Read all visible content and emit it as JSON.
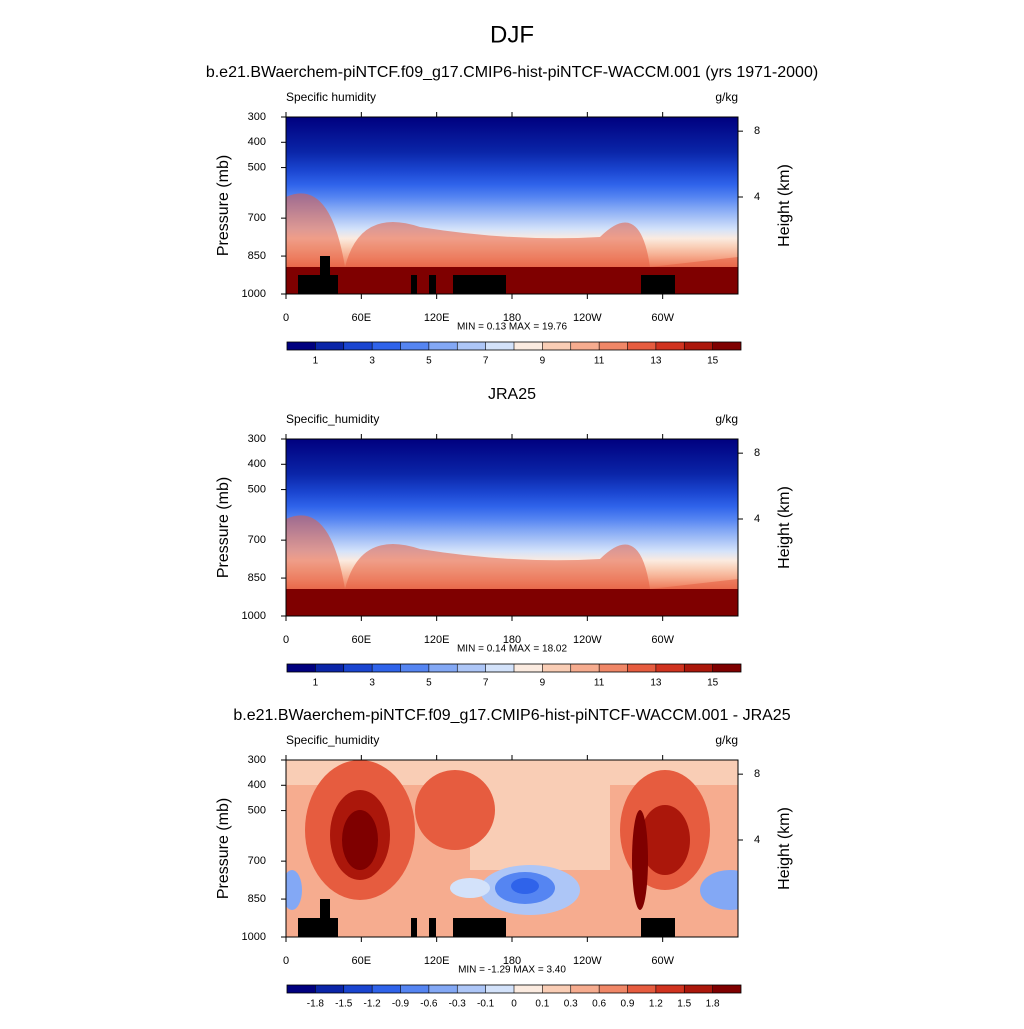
{
  "title": "DJF",
  "chart_data": [
    {
      "type": "contour",
      "title": "b.e21.BWaerchem-piNTCF.f09_g17.CMIP6-hist-piNTCF-WACCM.001 (yrs 1971-2000)",
      "left_label": "Specific humidity",
      "units": "g/kg",
      "ylabel": "Pressure (mb)",
      "y2label": "Height (km)",
      "ylim": [
        300,
        1000
      ],
      "yticks": [
        300,
        400,
        500,
        700,
        850,
        1000
      ],
      "y2ticks": [
        8,
        4
      ],
      "xlim": [
        0,
        360
      ],
      "xticks": [
        0,
        {
          "value": 60,
          "label": "60E"
        },
        {
          "value": 120,
          "label": "120E"
        },
        180,
        {
          "value": 240,
          "label": "120W"
        },
        {
          "value": 300,
          "label": "60W"
        }
      ],
      "stats": "MIN =  0.13  MAX =  19.76",
      "colorbar": {
        "levels": [
          1,
          2,
          3,
          4,
          5,
          6,
          7,
          8,
          9,
          10,
          11,
          12,
          13,
          14,
          15
        ],
        "ticks": [
          1,
          3,
          5,
          7,
          9,
          11,
          13,
          15
        ],
        "colors": [
          "#00007f",
          "#0a25a8",
          "#1a45d0",
          "#2f63ea",
          "#5585f2",
          "#83a8f5",
          "#adc6f7",
          "#d3e2fa",
          "#fbebe0",
          "#f9cdb5",
          "#f6ac8f",
          "#f08767",
          "#e65c3f",
          "#d0331f",
          "#ab170b",
          "#7f0000"
        ]
      }
    },
    {
      "type": "contour",
      "title": "JRA25",
      "left_label": "Specific_humidity",
      "units": "g/kg",
      "ylabel": "Pressure (mb)",
      "y2label": "Height (km)",
      "ylim": [
        300,
        1000
      ],
      "yticks": [
        300,
        400,
        500,
        700,
        850,
        1000
      ],
      "y2ticks": [
        8,
        4
      ],
      "xlim": [
        0,
        360
      ],
      "xticks": [
        0,
        {
          "value": 60,
          "label": "60E"
        },
        {
          "value": 120,
          "label": "120E"
        },
        180,
        {
          "value": 240,
          "label": "120W"
        },
        {
          "value": 300,
          "label": "60W"
        }
      ],
      "stats": "MIN =  0.14  MAX =  18.02",
      "colorbar": {
        "levels": [
          1,
          2,
          3,
          4,
          5,
          6,
          7,
          8,
          9,
          10,
          11,
          12,
          13,
          14,
          15
        ],
        "ticks": [
          1,
          3,
          5,
          7,
          9,
          11,
          13,
          15
        ],
        "colors": [
          "#00007f",
          "#0a25a8",
          "#1a45d0",
          "#2f63ea",
          "#5585f2",
          "#83a8f5",
          "#adc6f7",
          "#d3e2fa",
          "#fbebe0",
          "#f9cdb5",
          "#f6ac8f",
          "#f08767",
          "#e65c3f",
          "#d0331f",
          "#ab170b",
          "#7f0000"
        ]
      }
    },
    {
      "type": "contour",
      "title": "b.e21.BWaerchem-piNTCF.f09_g17.CMIP6-hist-piNTCF-WACCM.001 - JRA25",
      "left_label": "Specific_humidity",
      "units": "g/kg",
      "ylabel": "Pressure (mb)",
      "y2label": "Height (km)",
      "ylim": [
        300,
        1000
      ],
      "yticks": [
        300,
        400,
        500,
        700,
        850,
        1000
      ],
      "y2ticks": [
        8,
        4
      ],
      "xlim": [
        0,
        360
      ],
      "xticks": [
        0,
        {
          "value": 60,
          "label": "60E"
        },
        {
          "value": 120,
          "label": "120E"
        },
        180,
        {
          "value": 240,
          "label": "120W"
        },
        {
          "value": 300,
          "label": "60W"
        }
      ],
      "stats": "MIN = -1.29  MAX =  3.40",
      "colorbar": {
        "levels": [
          -1.8,
          -1.5,
          -1.2,
          -0.9,
          -0.6,
          -0.3,
          -0.1,
          0,
          0.1,
          0.3,
          0.6,
          0.9,
          1.2,
          1.5,
          1.8
        ],
        "ticks": [
          -1.8,
          -1.5,
          -1.2,
          -0.9,
          -0.6,
          -0.3,
          -0.1,
          0,
          0.1,
          0.3,
          0.6,
          0.9,
          1.2,
          1.5,
          1.8
        ],
        "colors": [
          "#00007f",
          "#0a25a8",
          "#1a45d0",
          "#2f63ea",
          "#5585f2",
          "#83a8f5",
          "#adc6f7",
          "#d3e2fa",
          "#fbebe0",
          "#f9cdb5",
          "#f6ac8f",
          "#f08767",
          "#e65c3f",
          "#d0331f",
          "#ab170b",
          "#7f0000"
        ]
      }
    }
  ]
}
